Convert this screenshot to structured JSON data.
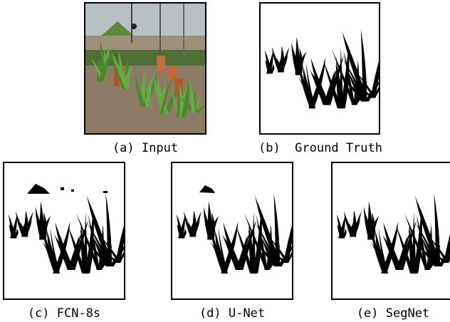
{
  "figure": {
    "panels": [
      {
        "caption": "(a) Input"
      },
      {
        "caption": "(b)  Ground Truth"
      },
      {
        "caption": "(c) FCN-8s"
      },
      {
        "caption": "(d) U-Net"
      },
      {
        "caption": "(e) SegNet"
      }
    ]
  }
}
